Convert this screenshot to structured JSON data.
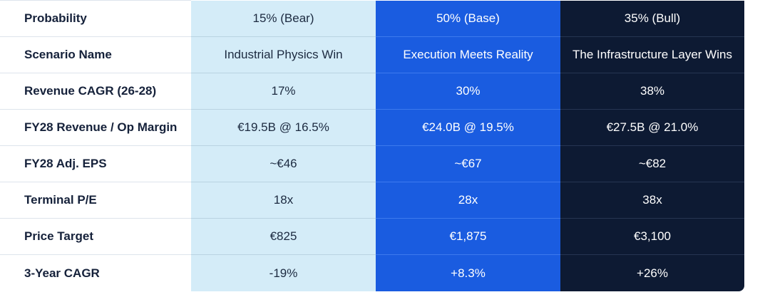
{
  "table": {
    "rows": [
      {
        "label": "Probability",
        "bear": "15% (Bear)",
        "base": "50% (Base)",
        "bull": "35% (Bull)"
      },
      {
        "label": "Scenario Name",
        "bear": "Industrial Physics Win",
        "base": "Execution Meets Reality",
        "bull": "The Infrastructure Layer Wins"
      },
      {
        "label": "Revenue CAGR (26-28)",
        "bear": "17%",
        "base": "30%",
        "bull": "38%"
      },
      {
        "label": "FY28 Revenue / Op Margin",
        "bear": "€19.5B @ 16.5%",
        "base": "€24.0B @ 19.5%",
        "bull": "€27.5B @ 21.0%"
      },
      {
        "label": "FY28 Adj. EPS",
        "bear": "~€46",
        "base": "~€67",
        "bull": "~€82"
      },
      {
        "label": "Terminal P/E",
        "bear": "18x",
        "base": "28x",
        "bull": "38x"
      },
      {
        "label": "Price Target",
        "bear": "€825",
        "base": "€1,875",
        "bull": "€3,100"
      },
      {
        "label": "3-Year CAGR",
        "bear": "-19%",
        "base": "+8.3%",
        "bull": "+26%"
      }
    ]
  },
  "colors": {
    "bear_column": "#d4ecf8",
    "base_column": "#1a5ce0",
    "bull_column": "#0d1a33",
    "label_text": "#15213a"
  }
}
